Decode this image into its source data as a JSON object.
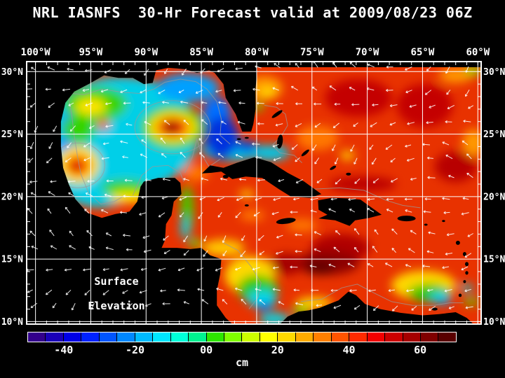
{
  "title": "NRL IASNFS  30-Hr Forecast valid at 2009/08/23 06Z",
  "overlay": {
    "line1": "Surface",
    "line2": "Elevation"
  },
  "axes": {
    "lon_ticks": [
      {
        "deg": -100,
        "label": "100°W"
      },
      {
        "deg": -95,
        "label": "95°W"
      },
      {
        "deg": -90,
        "label": "90°W"
      },
      {
        "deg": -85,
        "label": "85°W"
      },
      {
        "deg": -80,
        "label": "80°W"
      },
      {
        "deg": -75,
        "label": "75°W"
      },
      {
        "deg": -70,
        "label": "70°W"
      },
      {
        "deg": -65,
        "label": "65°W"
      },
      {
        "deg": -60,
        "label": "60°W"
      }
    ],
    "lat_ticks": [
      {
        "deg": 30,
        "label": "30°N"
      },
      {
        "deg": 25,
        "label": "25°N"
      },
      {
        "deg": 20,
        "label": "20°N"
      },
      {
        "deg": 15,
        "label": "15°N"
      },
      {
        "deg": 10,
        "label": "10°N"
      }
    ]
  },
  "colorbar": {
    "unit": "cm",
    "min": -50,
    "max": 70,
    "colors": [
      "#33008c",
      "#1a00b8",
      "#0000e6",
      "#0022ff",
      "#0055ff",
      "#0088ff",
      "#00bbff",
      "#00e6ff",
      "#00ffd9",
      "#00f290",
      "#2ee600",
      "#80ff00",
      "#ccff00",
      "#ffff00",
      "#ffd900",
      "#ffac00",
      "#ff8000",
      "#ff5500",
      "#ff2b00",
      "#f20000",
      "#cc0000",
      "#a60000",
      "#800000",
      "#590000"
    ],
    "labels": [
      {
        "value": -40,
        "label": "-40"
      },
      {
        "value": -20,
        "label": "-20"
      },
      {
        "value": 0,
        "label": "00"
      },
      {
        "value": 20,
        "label": "20"
      },
      {
        "value": 40,
        "label": "40"
      },
      {
        "value": 60,
        "label": "60"
      }
    ]
  },
  "chart_data": {
    "type": "heatmap",
    "variable": "Sea Surface Elevation 30-Hr Forecast",
    "unit": "cm",
    "lon_range": [
      -100.8,
      -59.7
    ],
    "lat_range": [
      9.8,
      30.8
    ],
    "value_range_cm": [
      -50,
      70
    ],
    "ocean_base_color": "#e83200",
    "features": [
      {
        "name": "gulf-base",
        "lon": -92.3,
        "lat": 25.0,
        "rx": 112,
        "ry": 82,
        "color": "#00cfe8"
      },
      {
        "name": "gulf-base-s",
        "lon": -94.2,
        "lat": 21.5,
        "rx": 62,
        "ry": 42,
        "color": "#00cfe8"
      },
      {
        "name": "straits-cyan",
        "lon": -82.2,
        "lat": 23.7,
        "rx": 44,
        "ry": 15,
        "color": "#00c8e8"
      },
      {
        "name": "bank-cyan",
        "lon": -78.8,
        "lat": 23.5,
        "rx": 28,
        "ry": 11,
        "color": "#00c8e8"
      },
      {
        "name": "wgulf-blue",
        "lon": -96.9,
        "lat": 24.2,
        "rx": 16,
        "ry": 54,
        "color": "#0095ff"
      },
      {
        "name": "negulf-blue",
        "lon": -86.2,
        "lat": 28.7,
        "rx": 44,
        "ry": 20,
        "color": "#00a0ff"
      },
      {
        "name": "egulf-blue",
        "lon": -83.6,
        "lat": 26.6,
        "rx": 20,
        "ry": 24,
        "color": "#0070ff"
      },
      {
        "name": "loop-dkblue",
        "lon": -83.2,
        "lat": 24.7,
        "rx": 24,
        "ry": 30,
        "color": "#0033dd"
      },
      {
        "name": "straits-dkblue",
        "lon": -80.9,
        "lat": 24.0,
        "rx": 15,
        "ry": 8,
        "color": "#0040e0"
      },
      {
        "name": "nwgulf-green",
        "lon": -94.6,
        "lat": 27.4,
        "rx": 46,
        "ry": 25,
        "color": "#35d400"
      },
      {
        "name": "nwgulf-yellow",
        "lon": -95.0,
        "lat": 27.2,
        "rx": 22,
        "ry": 12,
        "color": "#ffe400"
      },
      {
        "name": "nwgulf-redspot",
        "lon": -93.9,
        "lat": 25.8,
        "rx": 9,
        "ry": 7,
        "color": "#ff3300"
      },
      {
        "name": "wgulf-green",
        "lon": -96.1,
        "lat": 25.4,
        "rx": 24,
        "ry": 20,
        "color": "#35d400"
      },
      {
        "name": "weddy-yellow",
        "lon": -96.15,
        "lat": 22.55,
        "rx": 30,
        "ry": 27,
        "color": "#ffe400"
      },
      {
        "name": "weddy-orange",
        "lon": -96.15,
        "lat": 22.5,
        "rx": 19,
        "ry": 17,
        "color": "#ff8800"
      },
      {
        "name": "weddy-red",
        "lon": -96.25,
        "lat": 22.45,
        "rx": 12,
        "ry": 10,
        "color": "#ee1100"
      },
      {
        "name": "weddy-core",
        "lon": -96.35,
        "lat": 22.4,
        "rx": 5,
        "ry": 4,
        "color": "#990000"
      },
      {
        "name": "campeche-green",
        "lon": -91.9,
        "lat": 20.7,
        "rx": 34,
        "ry": 12,
        "color": "#35d400"
      },
      {
        "name": "campeche-yellow",
        "lon": -91.6,
        "lat": 19.95,
        "rx": 26,
        "ry": 8,
        "color": "#ffe400"
      },
      {
        "name": "loopeddy-green",
        "lon": -87.6,
        "lat": 25.55,
        "rx": 45,
        "ry": 31,
        "color": "#35d400"
      },
      {
        "name": "loopeddy-yellow",
        "lon": -87.6,
        "lat": 25.55,
        "rx": 34,
        "ry": 22,
        "color": "#ffe400"
      },
      {
        "name": "loopeddy-orange",
        "lon": -87.6,
        "lat": 25.55,
        "rx": 25,
        "ry": 16,
        "color": "#ff8800"
      },
      {
        "name": "loopeddy-red",
        "lon": -87.6,
        "lat": 25.55,
        "rx": 18,
        "ry": 11,
        "color": "#ee1100"
      },
      {
        "name": "loopeddy-core",
        "lon": -87.7,
        "lat": 25.55,
        "rx": 10,
        "ry": 6,
        "color": "#550000"
      },
      {
        "name": "yucatan-orange",
        "lon": -85.5,
        "lat": 21.9,
        "rx": 18,
        "ry": 12,
        "color": "#ff7700"
      },
      {
        "name": "yuccoast-green",
        "lon": -86.3,
        "lat": 18.9,
        "rx": 9,
        "ry": 36,
        "color": "#3fcc00"
      },
      {
        "name": "yuccoast-cyan",
        "lon": -86.5,
        "lat": 17.5,
        "rx": 6,
        "ry": 16,
        "color": "#00d0e0"
      },
      {
        "name": "batabano-yellow",
        "lon": -80.9,
        "lat": 20.2,
        "rx": 11,
        "ry": 5,
        "color": "#ffd800"
      },
      {
        "name": "atl-orange-nfl",
        "lon": -79.3,
        "lat": 28.7,
        "rx": 26,
        "ry": 17,
        "color": "#ff9900"
      },
      {
        "name": "atl-yellow-nfl",
        "lon": -79.0,
        "lat": 28.3,
        "rx": 12,
        "ry": 8,
        "color": "#ffd800"
      },
      {
        "name": "atl-green-spot",
        "lon": -79.9,
        "lat": 27.2,
        "rx": 8,
        "ry": 6,
        "color": "#55dd00"
      },
      {
        "name": "atl-orange-mid",
        "lon": -74.5,
        "lat": 24.7,
        "rx": 30,
        "ry": 18,
        "color": "#ff7700"
      },
      {
        "name": "atl-yellow-mid",
        "lon": -71.8,
        "lat": 23.3,
        "rx": 10,
        "ry": 7,
        "color": "#ffcc00"
      },
      {
        "name": "atl-dkred-1",
        "lon": -70.8,
        "lat": 27.9,
        "rx": 48,
        "ry": 27,
        "color": "#c40000"
      },
      {
        "name": "atl-dkred-2",
        "lon": -64.8,
        "lat": 27.3,
        "rx": 40,
        "ry": 31,
        "color": "#c40000"
      },
      {
        "name": "atl-orange-tr",
        "lon": -62.0,
        "lat": 29.7,
        "rx": 24,
        "ry": 11,
        "color": "#ff9900"
      },
      {
        "name": "atl-green-tr",
        "lon": -60.4,
        "lat": 30.1,
        "rx": 12,
        "ry": 7,
        "color": "#88e000"
      },
      {
        "name": "atl-orange-r",
        "lon": -60.4,
        "lat": 24.3,
        "rx": 16,
        "ry": 20,
        "color": "#ff9900"
      },
      {
        "name": "atl-dkred-low",
        "lon": -62.0,
        "lat": 22.4,
        "rx": 30,
        "ry": 22,
        "color": "#b80000"
      },
      {
        "name": "hisp-n-dkred",
        "lon": -70.4,
        "lat": 21.0,
        "rx": 48,
        "ry": 11,
        "color": "#bb0000"
      },
      {
        "name": "car-orange-jam",
        "lon": -75.9,
        "lat": 17.7,
        "rx": 22,
        "ry": 9,
        "color": "#ff7700"
      },
      {
        "name": "car-orange-cay",
        "lon": -80.4,
        "lat": 18.5,
        "rx": 18,
        "ry": 8,
        "color": "#ff7700"
      },
      {
        "name": "car-dkred-shisp",
        "lon": -72.4,
        "lat": 15.9,
        "rx": 42,
        "ry": 20,
        "color": "#b00000"
      },
      {
        "name": "car-maroon",
        "lon": -73.6,
        "lat": 14.7,
        "rx": 46,
        "ry": 17,
        "color": "#8c0000"
      },
      {
        "name": "car-maroon-core",
        "lon": -74.3,
        "lat": 14.3,
        "rx": 22,
        "ry": 10,
        "color": "#600000"
      },
      {
        "name": "car-dkred-w",
        "lon": -77.3,
        "lat": 14.6,
        "rx": 24,
        "ry": 15,
        "color": "#a40000"
      },
      {
        "name": "hond-yellow",
        "lon": -83.0,
        "lat": 15.9,
        "rx": 30,
        "ry": 12,
        "color": "#ffc800"
      },
      {
        "name": "hond-green",
        "lon": -85.6,
        "lat": 16.3,
        "rx": 10,
        "ry": 6,
        "color": "#55d800"
      },
      {
        "name": "wcar-yellow",
        "lon": -80.6,
        "lat": 13.7,
        "rx": 36,
        "ry": 27,
        "color": "#ffd800"
      },
      {
        "name": "wcar-green",
        "lon": -79.9,
        "lat": 12.6,
        "rx": 29,
        "ry": 20,
        "color": "#2ec800"
      },
      {
        "name": "wcar-cyan",
        "lon": -79.5,
        "lat": 11.8,
        "rx": 21,
        "ry": 13,
        "color": "#00d8e8"
      },
      {
        "name": "wcar-blue",
        "lon": -79.3,
        "lat": 11.2,
        "rx": 10,
        "ry": 6,
        "color": "#0066ff"
      },
      {
        "name": "wcar-cyan-s",
        "lon": -78.4,
        "lat": 10.2,
        "rx": 22,
        "ry": 9,
        "color": "#00d8e8"
      },
      {
        "name": "col-yellow",
        "lon": -74.8,
        "lat": 11.5,
        "rx": 26,
        "ry": 8,
        "color": "#ffd800"
      },
      {
        "name": "col-green",
        "lon": -76.0,
        "lat": 10.9,
        "rx": 13,
        "ry": 6,
        "color": "#55d800"
      },
      {
        "name": "secar-yellow",
        "lon": -64.9,
        "lat": 12.9,
        "rx": 46,
        "ry": 21,
        "color": "#ffd800"
      },
      {
        "name": "secar-green",
        "lon": -64.4,
        "lat": 12.3,
        "rx": 30,
        "ry": 13,
        "color": "#2ec800"
      },
      {
        "name": "secar-cyan",
        "lon": -63.4,
        "lat": 11.9,
        "rx": 15,
        "ry": 8,
        "color": "#00d8e8"
      },
      {
        "name": "secar-blue",
        "lon": -63.0,
        "lat": 11.6,
        "rx": 7,
        "ry": 4,
        "color": "#0080ff"
      },
      {
        "name": "gren-cyan",
        "lon": -61.0,
        "lat": 12.7,
        "rx": 9,
        "ry": 5,
        "color": "#00d8e8"
      },
      {
        "name": "trin-green",
        "lon": -60.6,
        "lat": 11.6,
        "rx": 11,
        "ry": 5,
        "color": "#55d800"
      }
    ]
  }
}
